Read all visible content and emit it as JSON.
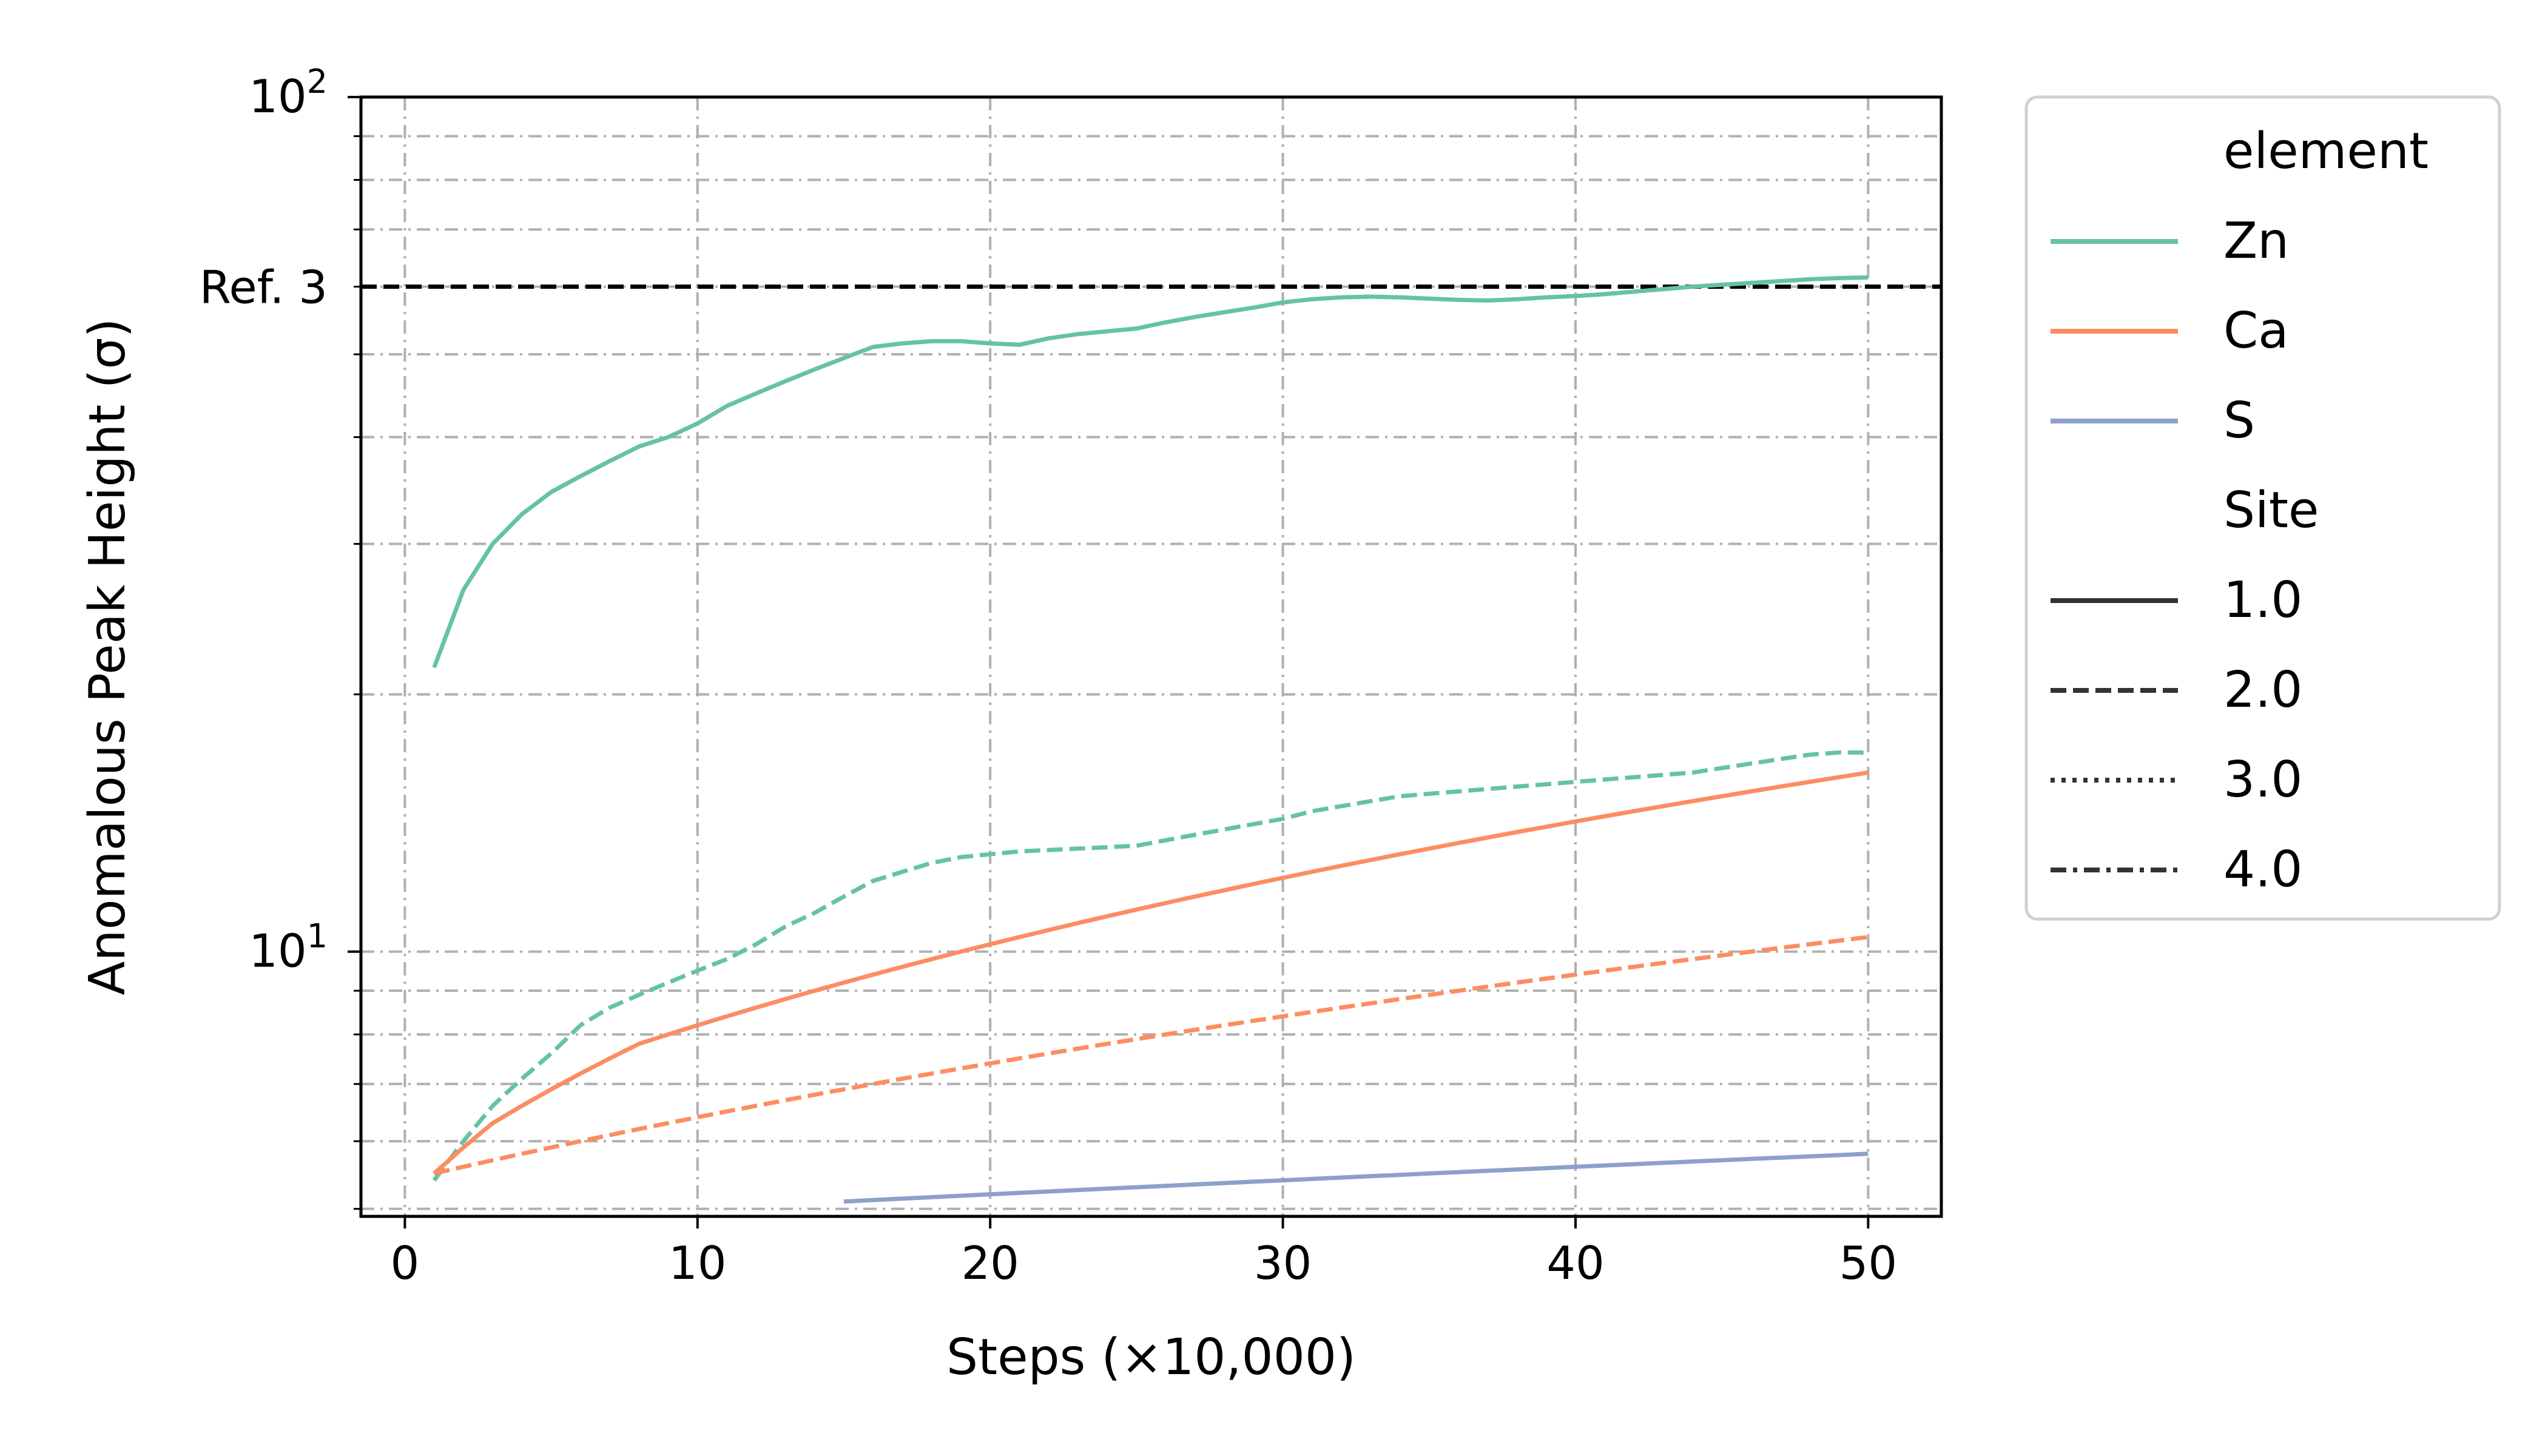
{
  "chart_data": {
    "type": "line",
    "xlabel": "Steps (×10,000)",
    "ylabel": "Anomalous Peak Height (σ)",
    "yscale": "log",
    "xlim": [
      -1.5,
      52.5
    ],
    "ylim": [
      4.9,
      100
    ],
    "x_ticks": [
      0,
      10,
      20,
      30,
      40,
      50
    ],
    "y_ticks": [
      {
        "value": 100,
        "base": "10",
        "exp": "2"
      },
      {
        "value": 10,
        "base": "10",
        "exp": "1"
      }
    ],
    "grid": true,
    "reference_line": {
      "label": "Ref. 3",
      "value": 60,
      "color": "#000000",
      "style": "dashed"
    },
    "legend": {
      "position": "outside-right",
      "hue_title": "element",
      "style_title": "Site",
      "elements": [
        {
          "name": "Zn",
          "color": "#66c2a5"
        },
        {
          "name": "Ca",
          "color": "#fc8d62"
        },
        {
          "name": "S",
          "color": "#8da0cb"
        }
      ],
      "sites": [
        {
          "name": "1.0",
          "dash": "solid"
        },
        {
          "name": "2.0",
          "dash": "dashed"
        },
        {
          "name": "3.0",
          "dash": "dotted"
        },
        {
          "name": "4.0",
          "dash": "dashdot"
        }
      ]
    },
    "series": [
      {
        "element": "Zn",
        "site": "1.0",
        "color": "#66c2a5",
        "dash": "solid",
        "x": [
          1,
          2,
          3,
          4,
          5,
          6,
          7,
          8,
          9,
          10,
          11,
          12,
          13,
          14,
          15,
          16,
          17,
          18,
          19,
          20,
          21,
          22,
          23,
          24,
          25,
          26,
          27,
          28,
          29,
          30,
          31,
          32,
          33,
          34,
          35,
          36,
          37,
          38,
          39,
          40,
          41,
          42,
          43,
          44,
          45,
          46,
          47,
          48,
          49,
          50
        ],
        "y": [
          21.5,
          26.5,
          30,
          32.5,
          34.5,
          36,
          37.5,
          39,
          40,
          41.5,
          43.5,
          45,
          46.5,
          48,
          49.5,
          51,
          51.5,
          51.8,
          51.8,
          51.5,
          51.3,
          52.2,
          52.8,
          53.2,
          53.6,
          54.5,
          55.3,
          56,
          56.7,
          57.5,
          58,
          58.3,
          58.4,
          58.3,
          58.1,
          57.9,
          57.8,
          58,
          58.3,
          58.5,
          58.8,
          59.2,
          59.6,
          60,
          60.3,
          60.6,
          60.9,
          61.2,
          61.4,
          61.5
        ]
      },
      {
        "element": "Zn",
        "site": "2.0",
        "color": "#66c2a5",
        "dash": "dashed",
        "x": [
          1,
          2,
          3,
          4,
          5,
          6,
          7,
          8,
          9,
          10,
          11,
          12,
          13,
          14,
          15,
          16,
          17,
          18,
          19,
          20,
          21,
          22,
          23,
          24,
          25,
          26,
          27,
          28,
          29,
          30,
          31,
          32,
          33,
          34,
          35,
          36,
          37,
          38,
          39,
          40,
          41,
          42,
          43,
          44,
          45,
          46,
          47,
          48,
          49,
          50
        ],
        "y": [
          5.4,
          6,
          6.6,
          7.1,
          7.6,
          8.2,
          8.6,
          8.9,
          9.2,
          9.5,
          9.8,
          10.2,
          10.7,
          11.1,
          11.6,
          12.1,
          12.4,
          12.7,
          12.9,
          13.0,
          13.1,
          13.15,
          13.2,
          13.25,
          13.3,
          13.5,
          13.7,
          13.9,
          14.1,
          14.3,
          14.6,
          14.8,
          15.0,
          15.2,
          15.3,
          15.4,
          15.5,
          15.6,
          15.7,
          15.8,
          15.9,
          16.0,
          16.1,
          16.2,
          16.4,
          16.6,
          16.8,
          17.0,
          17.1,
          17.1
        ]
      },
      {
        "element": "Ca",
        "site": "1.0",
        "color": "#fc8d62",
        "dash": "solid",
        "x": [
          1,
          2,
          3,
          4,
          5,
          6,
          7,
          8,
          9,
          10,
          11,
          12,
          13,
          14,
          15,
          16,
          17,
          18,
          19,
          20,
          21,
          22,
          23,
          24,
          25,
          26,
          27,
          28,
          29,
          30,
          31,
          32,
          33,
          34,
          35,
          36,
          37,
          38,
          39,
          40,
          41,
          42,
          43,
          44,
          45,
          46,
          47,
          48,
          49,
          50
        ],
        "y": [
          5.5,
          5.9,
          6.3,
          6.6,
          6.9,
          7.2,
          7.5,
          7.8,
          8.0,
          8.2,
          8.4,
          8.6,
          8.8,
          9.0,
          9.2,
          9.4,
          9.6,
          9.8,
          10.0,
          10.2,
          10.4,
          10.6,
          10.8,
          11.0,
          11.2,
          11.4,
          11.6,
          11.8,
          12.0,
          12.2,
          12.4,
          12.6,
          12.8,
          13.0,
          13.2,
          13.4,
          13.6,
          13.8,
          14.0,
          14.2,
          14.4,
          14.6,
          14.8,
          15.0,
          15.2,
          15.4,
          15.6,
          15.8,
          16.0,
          16.2
        ]
      },
      {
        "element": "Ca",
        "site": "2.0",
        "color": "#fc8d62",
        "dash": "dashed",
        "x": [
          1,
          2,
          3,
          4,
          5,
          6,
          7,
          8,
          9,
          10,
          11,
          12,
          13,
          14,
          15,
          16,
          17,
          18,
          19,
          20,
          21,
          22,
          23,
          24,
          25,
          26,
          27,
          28,
          29,
          30,
          31,
          32,
          33,
          34,
          35,
          36,
          37,
          38,
          39,
          40,
          41,
          42,
          43,
          44,
          45,
          46,
          47,
          48,
          49,
          50
        ],
        "y": [
          5.5,
          5.6,
          5.7,
          5.8,
          5.9,
          6.0,
          6.1,
          6.2,
          6.3,
          6.4,
          6.5,
          6.6,
          6.7,
          6.8,
          6.9,
          7.0,
          7.1,
          7.2,
          7.3,
          7.4,
          7.5,
          7.6,
          7.7,
          7.8,
          7.9,
          8.0,
          8.1,
          8.2,
          8.3,
          8.4,
          8.5,
          8.6,
          8.7,
          8.8,
          8.9,
          9.0,
          9.1,
          9.2,
          9.3,
          9.4,
          9.5,
          9.6,
          9.7,
          9.8,
          9.9,
          10.0,
          10.1,
          10.2,
          10.3,
          10.4
        ]
      },
      {
        "element": "S",
        "site": "1.0",
        "color": "#8da0cb",
        "dash": "solid",
        "x": [
          15,
          16,
          17,
          18,
          19,
          20,
          21,
          22,
          23,
          24,
          25,
          26,
          27,
          28,
          29,
          30,
          31,
          32,
          33,
          34,
          35,
          36,
          37,
          38,
          39,
          40,
          41,
          42,
          43,
          44,
          45,
          46,
          47,
          48,
          49,
          50
        ],
        "y": [
          5.1,
          5.12,
          5.14,
          5.16,
          5.18,
          5.2,
          5.22,
          5.24,
          5.26,
          5.28,
          5.3,
          5.32,
          5.34,
          5.36,
          5.38,
          5.4,
          5.42,
          5.44,
          5.46,
          5.48,
          5.5,
          5.52,
          5.54,
          5.56,
          5.58,
          5.6,
          5.62,
          5.64,
          5.66,
          5.68,
          5.7,
          5.72,
          5.74,
          5.76,
          5.78,
          5.8
        ]
      }
    ]
  }
}
